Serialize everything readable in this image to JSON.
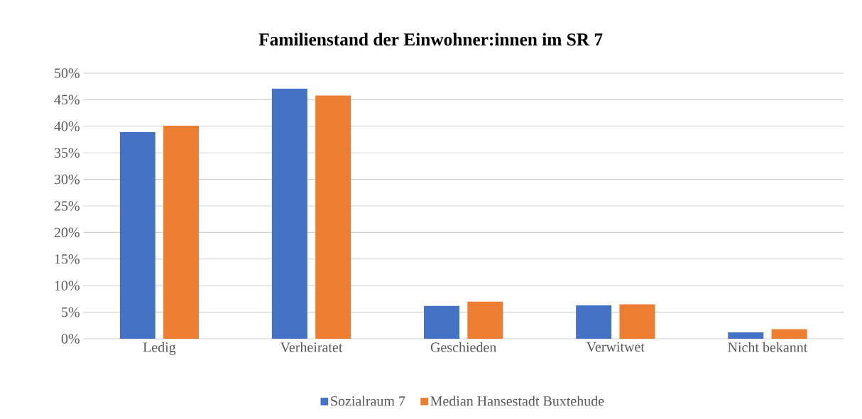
{
  "chart_data": {
    "type": "bar",
    "title": "Familienstand der Einwohner:innen im SR 7",
    "categories": [
      "Ledig",
      "Verheiratet",
      "Geschieden",
      "Verwitwet",
      "Nicht bekannt"
    ],
    "series": [
      {
        "name": "Sozialraum 7",
        "color": "#4472c4",
        "values": [
          38.9,
          47.1,
          6.2,
          6.3,
          1.2
        ]
      },
      {
        "name": "Median Hansestadt Buxtehude",
        "color": "#ed7d31",
        "values": [
          40.1,
          45.8,
          7.0,
          6.5,
          1.8
        ]
      }
    ],
    "ylim": [
      0,
      50
    ],
    "yticks": [
      {
        "value": 0,
        "label": "0%"
      },
      {
        "value": 5,
        "label": "5%"
      },
      {
        "value": 10,
        "label": "10%"
      },
      {
        "value": 15,
        "label": "15%"
      },
      {
        "value": 20,
        "label": "20%"
      },
      {
        "value": 25,
        "label": "25%"
      },
      {
        "value": 30,
        "label": "30%"
      },
      {
        "value": 35,
        "label": "35%"
      },
      {
        "value": 40,
        "label": "40%"
      },
      {
        "value": 45,
        "label": "45%"
      },
      {
        "value": 50,
        "label": "50%"
      }
    ],
    "grid": "y",
    "legend": "bottom"
  }
}
